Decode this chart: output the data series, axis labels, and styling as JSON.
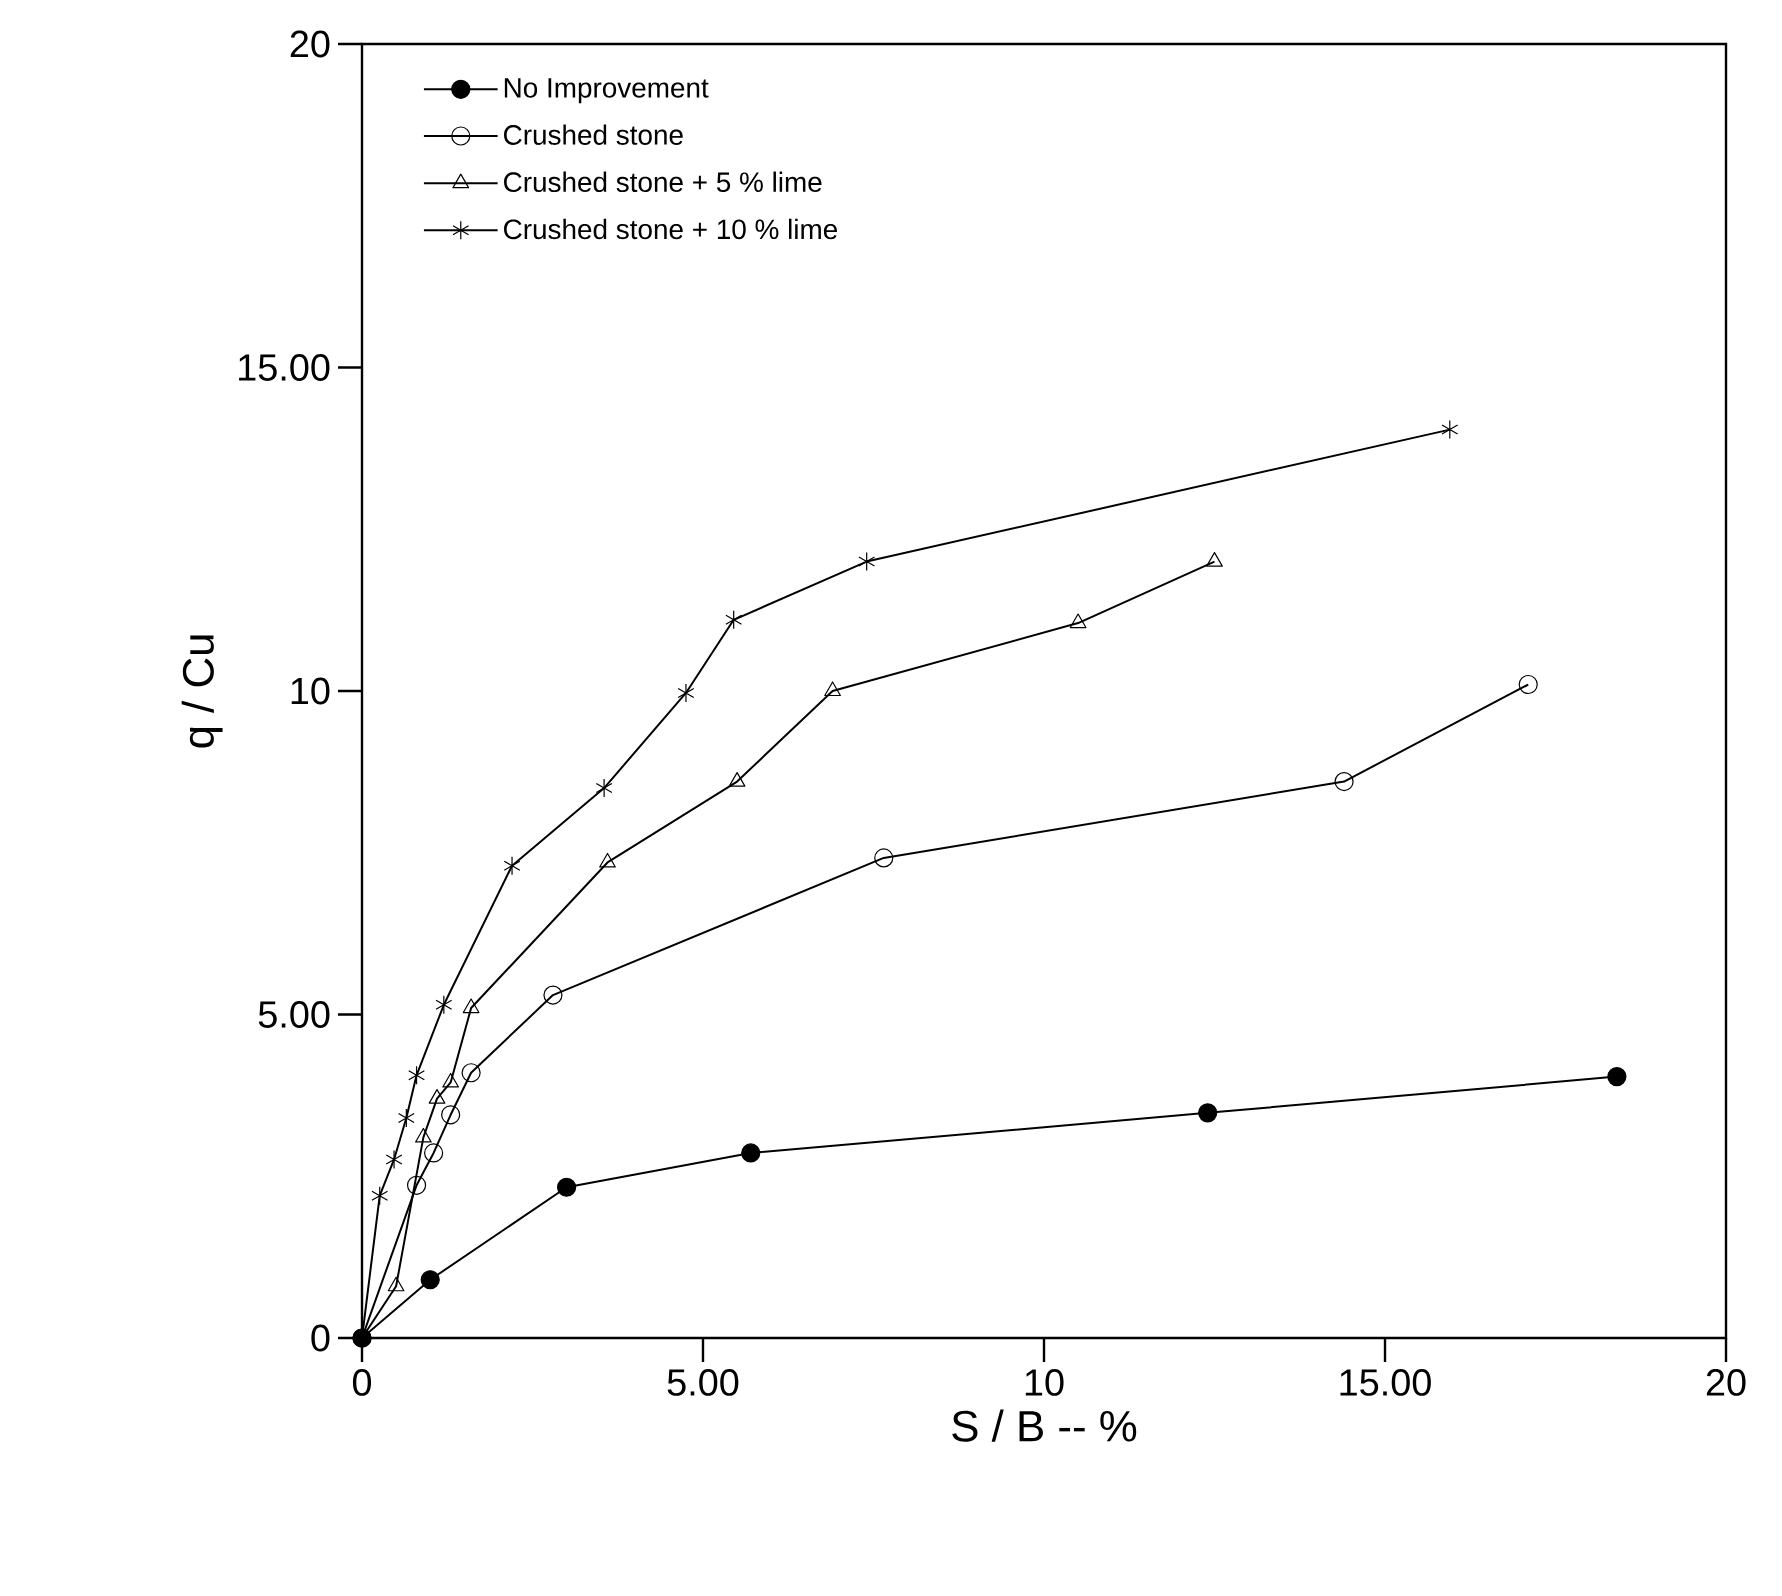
{
  "chart_data": {
    "type": "line",
    "xlabel": "S / B -- %",
    "ylabel": "q / Cu",
    "xlim": [
      0,
      20
    ],
    "ylim": [
      0,
      20
    ],
    "xticks": [
      0,
      {
        "value": 5,
        "label": "5.00"
      },
      10,
      {
        "value": 15,
        "label": "15.00"
      },
      20
    ],
    "yticks": [
      0,
      {
        "value": 5,
        "label": "5.00"
      },
      10,
      {
        "value": 15,
        "label": "15.00"
      },
      20
    ],
    "grid": false,
    "legend": "top left",
    "line_style": "solid",
    "series": [
      {
        "name": "No Improvement",
        "color": "#000000",
        "marker": "circle",
        "colors": [
          "#000000",
          "#000000",
          "#000000",
          "#000000",
          "#000000",
          "#000000"
        ],
        "x": [
          0,
          1.0,
          3.0,
          5.7,
          12.4,
          18.4
        ],
        "values": [
          0,
          0.9,
          2.33,
          2.86,
          3.48,
          4.04
        ]
      },
      {
        "name": "Crushed stone",
        "color": "#000000",
        "marker": "circle",
        "x": [
          0,
          0.8,
          1.05,
          1.3,
          1.6,
          2.8,
          7.65,
          14.4,
          17.1
        ],
        "values": [
          0,
          2.36,
          2.86,
          3.45,
          4.1,
          5.3,
          7.42,
          8.6,
          10.1
        ]
      },
      {
        "name": "Crushed stone + 5 % lime",
        "color": "#000000",
        "marker": "triangle",
        "x": [
          0,
          0.5,
          0.9,
          1.1,
          1.3,
          1.6,
          3.6,
          5.5,
          6.9,
          10.5,
          12.5
        ],
        "values": [
          0,
          0.8,
          3.1,
          3.7,
          3.95,
          5.1,
          7.35,
          8.6,
          10.0,
          11.05,
          12.0
        ]
      },
      {
        "name": "Crushed stone + 10 % lime",
        "color": "#000000",
        "marker": "cross",
        "x": [
          0,
          0.26,
          0.47,
          0.65,
          0.8,
          1.2,
          2.2,
          3.55,
          4.75,
          5.45,
          7.4,
          15.95
        ],
        "values": [
          0,
          2.2,
          2.76,
          3.4,
          4.06,
          5.15,
          7.3,
          8.5,
          9.97,
          11.1,
          12.0,
          14.04
        ]
      }
    ]
  }
}
